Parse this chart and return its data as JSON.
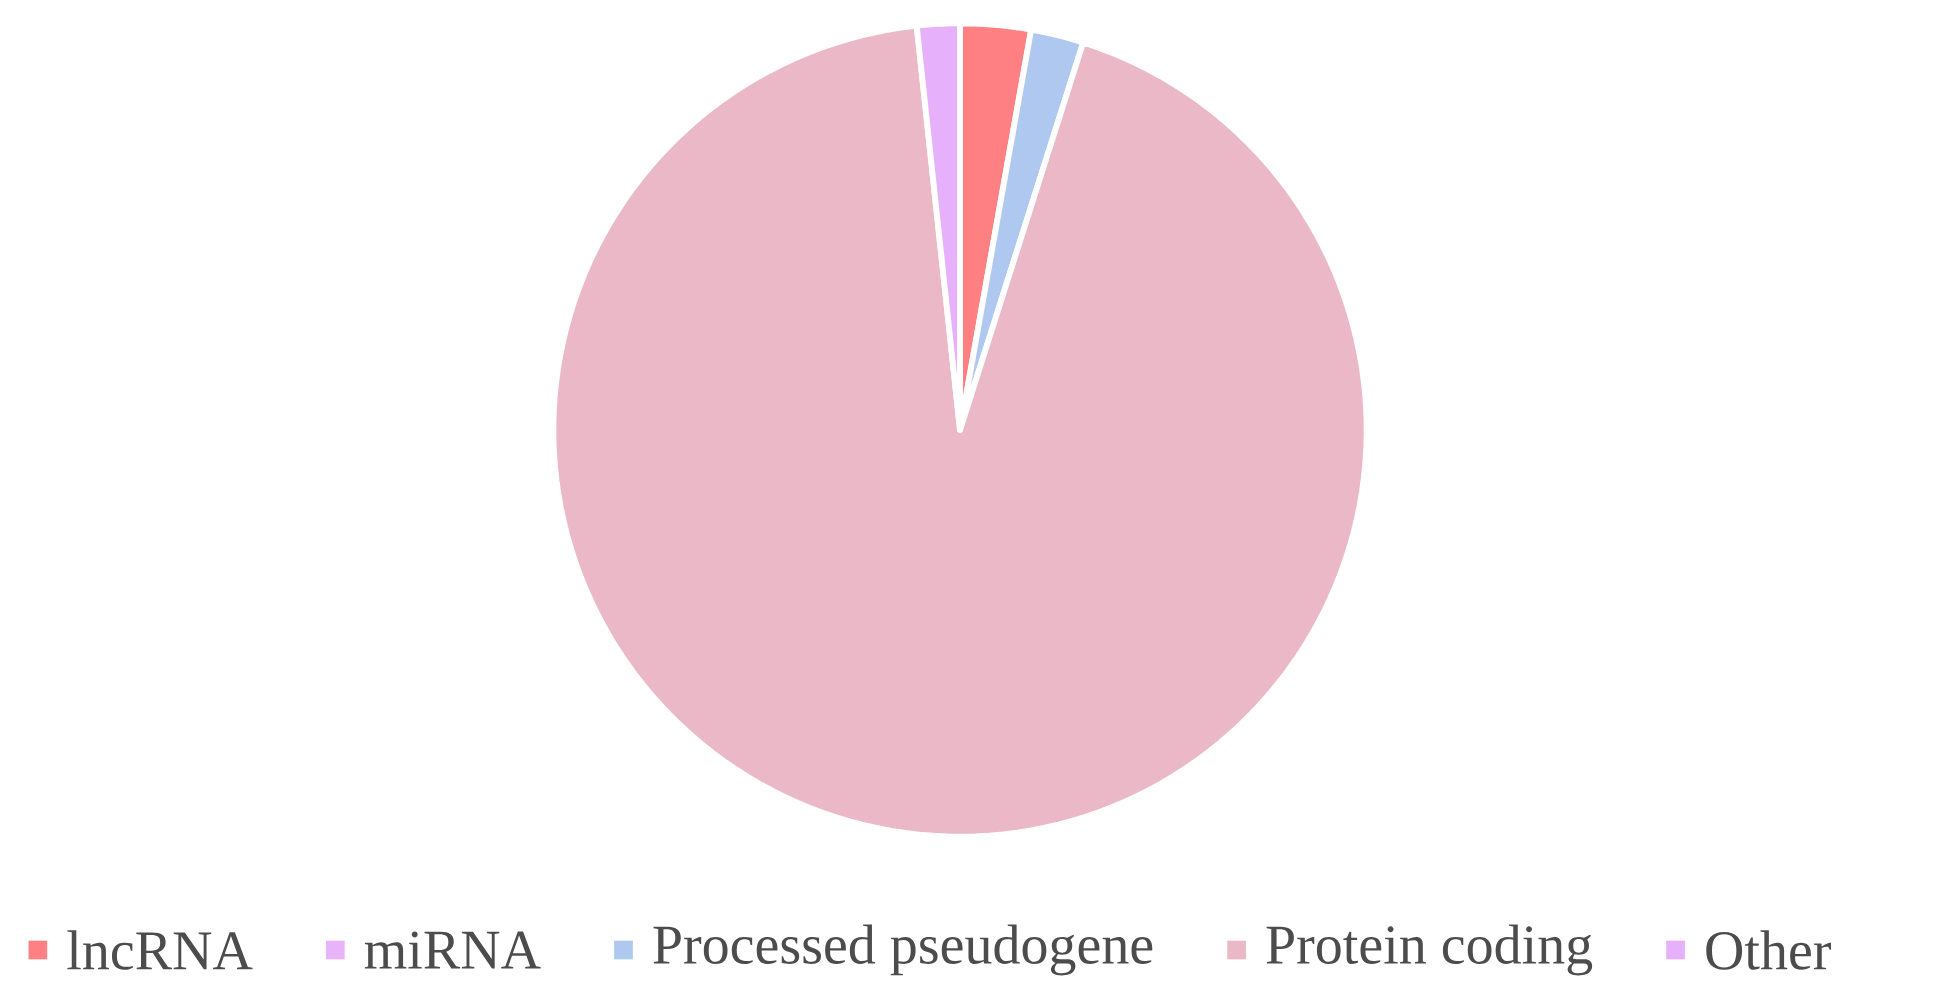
{
  "chart_data": {
    "type": "pie",
    "categories": [
      "lncRNA",
      "miRNA",
      "Processed pseudogene",
      "Protein coding",
      "Other"
    ],
    "values": [
      2.8,
      null,
      2.1,
      93.4,
      1.7
    ],
    "colors": [
      "#fe8083",
      "#e9b3f9",
      "#aec8f0",
      "#ebb8c8",
      "#e6b0fa"
    ],
    "legend": "bottom"
  }
}
